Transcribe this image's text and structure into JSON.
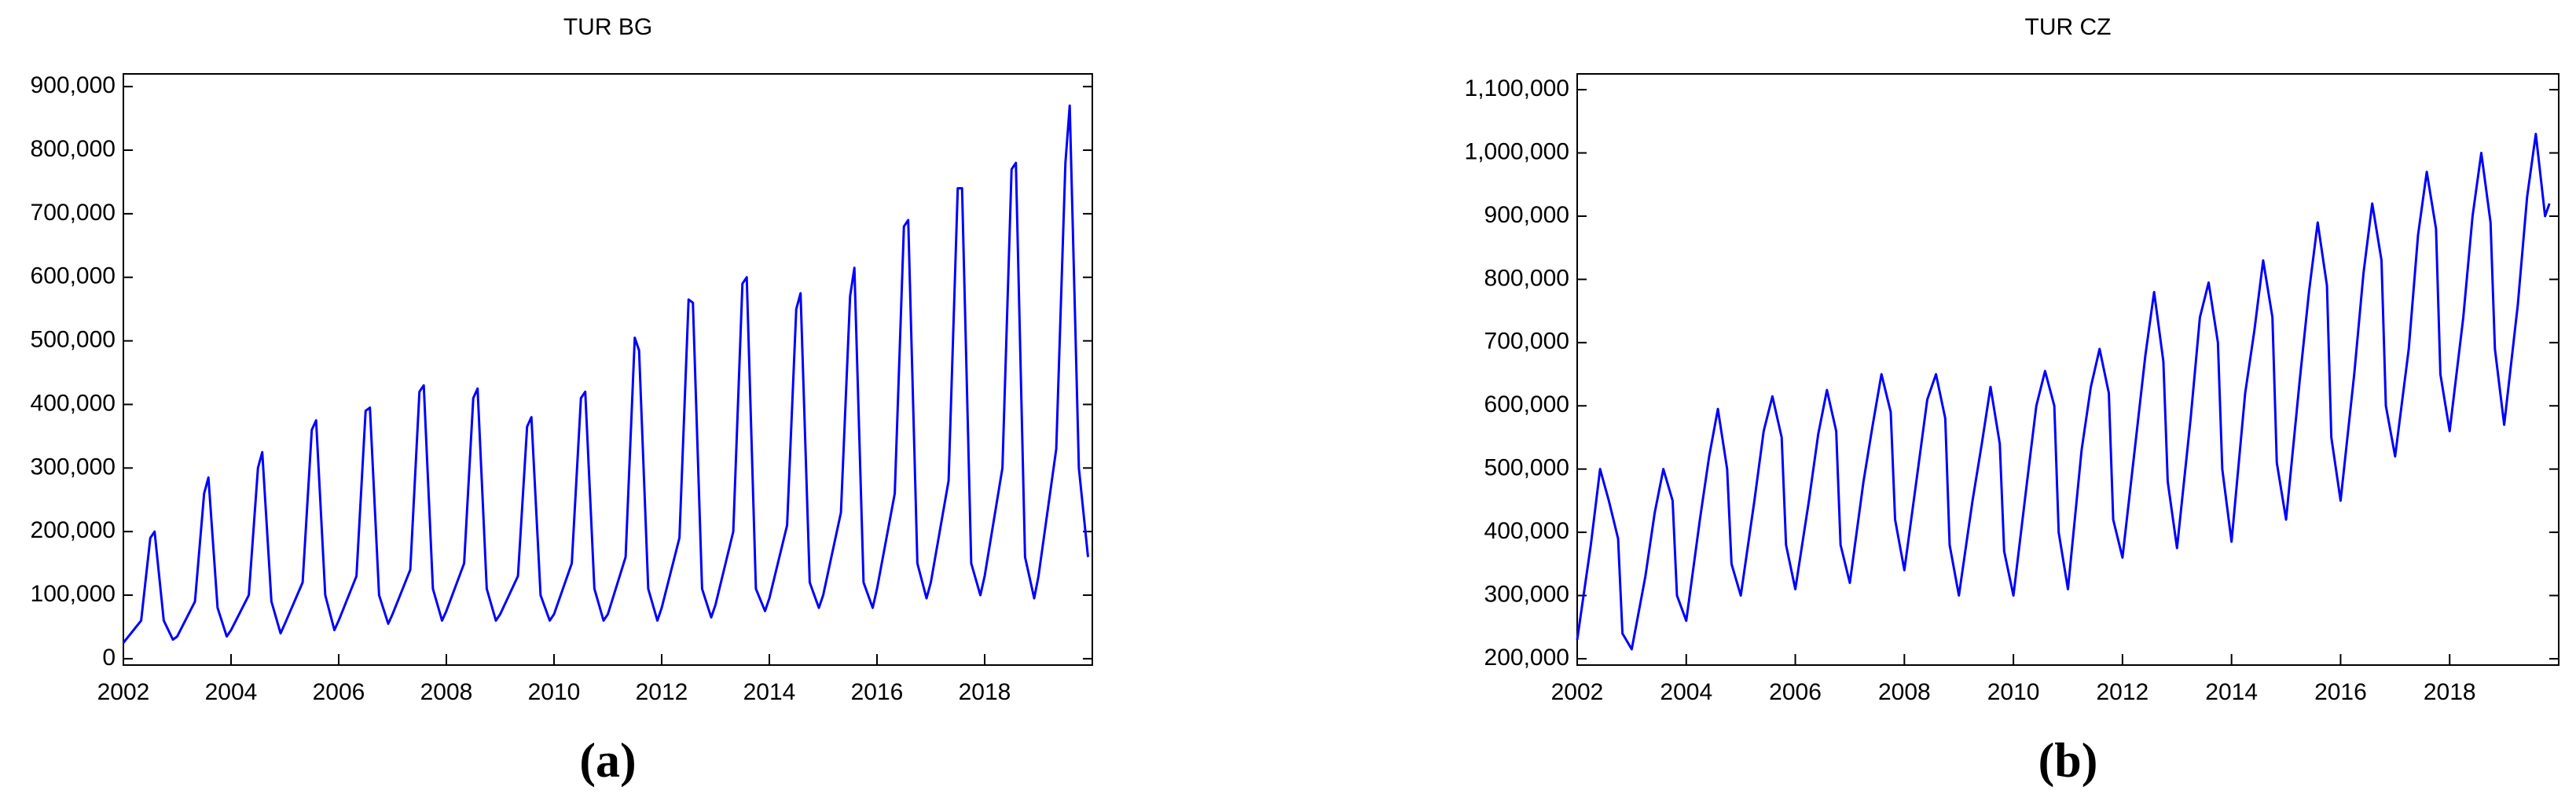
{
  "chart_data": [
    {
      "type": "line",
      "title": "TUR BG",
      "caption": "(a)",
      "xlim": [
        2002,
        2020
      ],
      "xticks": [
        2002,
        2004,
        2006,
        2008,
        2010,
        2012,
        2014,
        2016,
        2018
      ],
      "ylim": [
        -10000,
        920000
      ],
      "yticks": [
        0,
        {
          "value": 100000,
          "label": "100,000"
        },
        {
          "value": 200000,
          "label": "200,000"
        },
        {
          "value": 300000,
          "label": "300,000"
        },
        {
          "value": 400000,
          "label": "400,000"
        },
        {
          "value": 500000,
          "label": "500,000"
        },
        {
          "value": 600000,
          "label": "600,000"
        },
        {
          "value": 700000,
          "label": "700,000"
        },
        {
          "value": 800000,
          "label": "800,000"
        },
        {
          "value": 900000,
          "label": "900,000"
        }
      ],
      "x": [
        2002,
        2002.33,
        2002.5,
        2002.58,
        2002.75,
        2002.92,
        2003,
        2003.33,
        2003.5,
        2003.58,
        2003.75,
        2003.92,
        2004,
        2004.33,
        2004.5,
        2004.58,
        2004.75,
        2004.92,
        2005,
        2005.33,
        2005.5,
        2005.58,
        2005.75,
        2005.92,
        2006,
        2006.33,
        2006.5,
        2006.58,
        2006.75,
        2006.92,
        2007,
        2007.33,
        2007.5,
        2007.58,
        2007.75,
        2007.92,
        2008,
        2008.33,
        2008.5,
        2008.58,
        2008.75,
        2008.92,
        2009,
        2009.33,
        2009.5,
        2009.58,
        2009.75,
        2009.92,
        2010,
        2010.33,
        2010.5,
        2010.58,
        2010.75,
        2010.92,
        2011,
        2011.33,
        2011.5,
        2011.58,
        2011.75,
        2011.92,
        2012,
        2012.33,
        2012.5,
        2012.58,
        2012.75,
        2012.92,
        2013,
        2013.33,
        2013.5,
        2013.58,
        2013.75,
        2013.92,
        2014,
        2014.33,
        2014.5,
        2014.58,
        2014.75,
        2014.92,
        2015,
        2015.33,
        2015.5,
        2015.58,
        2015.75,
        2015.92,
        2016,
        2016.33,
        2016.5,
        2016.58,
        2016.75,
        2016.92,
        2017,
        2017.33,
        2017.5,
        2017.58,
        2017.75,
        2017.92,
        2018,
        2018.33,
        2018.5,
        2018.58,
        2018.75,
        2018.92,
        2019,
        2019.33,
        2019.5,
        2019.58,
        2019.75,
        2019.92
      ],
      "series": [
        {
          "color": "#0000ff",
          "values": [
            25000,
            60000,
            190000,
            200000,
            60000,
            30000,
            35000,
            90000,
            260000,
            285000,
            80000,
            35000,
            45000,
            100000,
            300000,
            325000,
            90000,
            40000,
            55000,
            120000,
            360000,
            375000,
            100000,
            45000,
            60000,
            130000,
            390000,
            395000,
            100000,
            55000,
            70000,
            140000,
            420000,
            430000,
            110000,
            60000,
            75000,
            150000,
            410000,
            425000,
            110000,
            60000,
            70000,
            130000,
            365000,
            380000,
            100000,
            60000,
            70000,
            150000,
            410000,
            420000,
            110000,
            60000,
            70000,
            160000,
            505000,
            485000,
            110000,
            60000,
            80000,
            190000,
            565000,
            560000,
            110000,
            65000,
            85000,
            200000,
            590000,
            600000,
            110000,
            75000,
            95000,
            210000,
            550000,
            575000,
            120000,
            80000,
            100000,
            230000,
            570000,
            615000,
            120000,
            80000,
            110000,
            260000,
            680000,
            690000,
            150000,
            95000,
            120000,
            280000,
            740000,
            740000,
            150000,
            100000,
            130000,
            300000,
            770000,
            780000,
            160000,
            95000,
            130000,
            330000,
            780000,
            870000,
            300000,
            160000
          ]
        }
      ]
    },
    {
      "type": "line",
      "title": "TUR CZ",
      "caption": "(b)",
      "xlim": [
        2002,
        2020
      ],
      "xticks": [
        2002,
        2004,
        2006,
        2008,
        2010,
        2012,
        2014,
        2016,
        2018
      ],
      "ylim": [
        190000,
        1125000
      ],
      "yticks": [
        {
          "value": 200000,
          "label": "200,000"
        },
        {
          "value": 300000,
          "label": "300,000"
        },
        {
          "value": 400000,
          "label": "400,000"
        },
        {
          "value": 500000,
          "label": "500,000"
        },
        {
          "value": 600000,
          "label": "600,000"
        },
        {
          "value": 700000,
          "label": "700,000"
        },
        {
          "value": 800000,
          "label": "800,000"
        },
        {
          "value": 900000,
          "label": "900,000"
        },
        {
          "value": 1000000,
          "label": "1,000,000"
        },
        {
          "value": 1100000,
          "label": "1,100,000"
        }
      ],
      "x": [
        2002,
        2002.25,
        2002.42,
        2002.58,
        2002.75,
        2002.83,
        2003,
        2003.25,
        2003.42,
        2003.58,
        2003.75,
        2003.83,
        2004,
        2004.25,
        2004.42,
        2004.58,
        2004.75,
        2004.83,
        2005,
        2005.25,
        2005.42,
        2005.58,
        2005.75,
        2005.83,
        2006,
        2006.25,
        2006.42,
        2006.58,
        2006.75,
        2006.83,
        2007,
        2007.25,
        2007.42,
        2007.58,
        2007.75,
        2007.83,
        2008,
        2008.25,
        2008.42,
        2008.58,
        2008.75,
        2008.83,
        2009,
        2009.25,
        2009.42,
        2009.58,
        2009.75,
        2009.83,
        2010,
        2010.25,
        2010.42,
        2010.58,
        2010.75,
        2010.83,
        2011,
        2011.25,
        2011.42,
        2011.58,
        2011.75,
        2011.83,
        2012,
        2012.25,
        2012.42,
        2012.58,
        2012.75,
        2012.83,
        2013,
        2013.25,
        2013.42,
        2013.58,
        2013.75,
        2013.83,
        2014,
        2014.25,
        2014.42,
        2014.58,
        2014.75,
        2014.83,
        2015,
        2015.25,
        2015.42,
        2015.58,
        2015.75,
        2015.83,
        2016,
        2016.25,
        2016.42,
        2016.58,
        2016.75,
        2016.83,
        2017,
        2017.25,
        2017.42,
        2017.58,
        2017.75,
        2017.83,
        2018,
        2018.25,
        2018.42,
        2018.58,
        2018.75,
        2018.83,
        2019,
        2019.25,
        2019.42,
        2019.58,
        2019.75,
        2019.83
      ],
      "series": [
        {
          "color": "#0000ff",
          "values": [
            230000,
            380000,
            500000,
            450000,
            390000,
            240000,
            215000,
            330000,
            430000,
            500000,
            450000,
            300000,
            260000,
            420000,
            520000,
            595000,
            500000,
            350000,
            300000,
            450000,
            560000,
            615000,
            550000,
            380000,
            310000,
            450000,
            555000,
            625000,
            560000,
            380000,
            320000,
            480000,
            570000,
            650000,
            590000,
            420000,
            340000,
            500000,
            610000,
            650000,
            580000,
            380000,
            300000,
            450000,
            540000,
            630000,
            540000,
            370000,
            300000,
            480000,
            600000,
            655000,
            600000,
            400000,
            310000,
            530000,
            630000,
            690000,
            620000,
            420000,
            360000,
            550000,
            680000,
            780000,
            670000,
            480000,
            375000,
            580000,
            740000,
            795000,
            700000,
            500000,
            385000,
            620000,
            720000,
            830000,
            740000,
            510000,
            420000,
            640000,
            780000,
            890000,
            790000,
            550000,
            450000,
            650000,
            810000,
            920000,
            830000,
            600000,
            520000,
            690000,
            870000,
            970000,
            880000,
            650000,
            560000,
            740000,
            900000,
            1000000,
            890000,
            690000,
            570000,
            760000,
            930000,
            1030000,
            900000,
            920000
          ]
        }
      ]
    }
  ]
}
